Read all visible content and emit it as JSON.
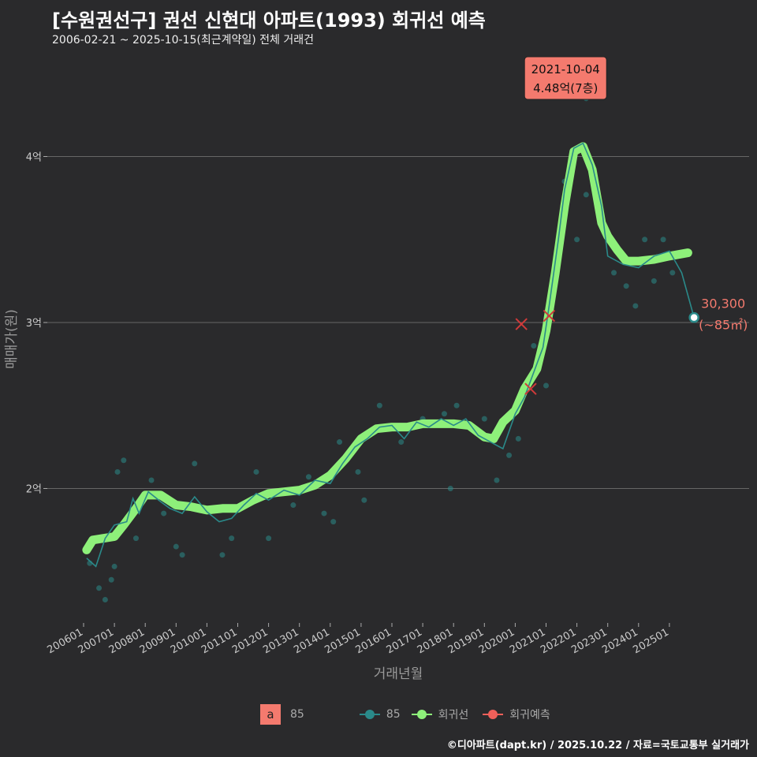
{
  "title": "[수원권선구] 권선 신현대 아파트(1993) 회귀선 예측",
  "subtitle": "2006-02-21 ~ 2025-10-15(최근계약일) 전체 거래건",
  "footer": "©디아파트(dapt.kr) / 2025.10.22 / 자료=국토교통부 실거래가",
  "legend": {
    "a_label": "a",
    "area_label": "85",
    "items": [
      {
        "label": "85",
        "color": "#2a8a8a"
      },
      {
        "label": "회귀선",
        "color": "#8ef07a"
      },
      {
        "label": "회귀예측",
        "color": "#f0605a"
      }
    ]
  },
  "chart_data": {
    "type": "line",
    "xlabel": "거래년월",
    "ylabel": "매매가(원)",
    "xlim": [
      2005.7,
      2026.5
    ],
    "ylim": [
      1.2,
      4.7
    ],
    "x_ticks": [
      "200601",
      "200701",
      "200801",
      "200901",
      "201001",
      "201101",
      "201201",
      "201301",
      "201401",
      "201501",
      "201601",
      "201701",
      "201801",
      "201901",
      "202001",
      "202101",
      "202201",
      "202301",
      "202401",
      "202501"
    ],
    "y_ticks": [
      {
        "value": 2,
        "label": "2억"
      },
      {
        "value": 3,
        "label": "3억"
      },
      {
        "value": 4,
        "label": "4억"
      }
    ],
    "colors": {
      "regression": "#8ef07a",
      "area85": "#2a8a8a",
      "predict": "#d03a3a",
      "grid": "#666666",
      "label": "#f47a6e"
    },
    "regression": [
      [
        2006.1,
        1.63
      ],
      [
        2006.3,
        1.69
      ],
      [
        2007.0,
        1.71
      ],
      [
        2007.3,
        1.78
      ],
      [
        2007.7,
        1.88
      ],
      [
        2008.0,
        1.96
      ],
      [
        2008.5,
        1.96
      ],
      [
        2009.0,
        1.9
      ],
      [
        2009.5,
        1.89
      ],
      [
        2010.0,
        1.87
      ],
      [
        2010.5,
        1.88
      ],
      [
        2011.0,
        1.88
      ],
      [
        2011.5,
        1.93
      ],
      [
        2012.0,
        1.97
      ],
      [
        2012.5,
        1.98
      ],
      [
        2013.0,
        1.99
      ],
      [
        2013.5,
        2.02
      ],
      [
        2014.0,
        2.08
      ],
      [
        2014.5,
        2.18
      ],
      [
        2015.0,
        2.3
      ],
      [
        2015.5,
        2.36
      ],
      [
        2016.0,
        2.37
      ],
      [
        2016.5,
        2.37
      ],
      [
        2017.0,
        2.39
      ],
      [
        2017.5,
        2.39
      ],
      [
        2018.0,
        2.39
      ],
      [
        2018.5,
        2.38
      ],
      [
        2019.0,
        2.31
      ],
      [
        2019.3,
        2.3
      ],
      [
        2019.6,
        2.4
      ],
      [
        2020.0,
        2.47
      ],
      [
        2020.3,
        2.6
      ],
      [
        2020.7,
        2.72
      ],
      [
        2021.0,
        2.95
      ],
      [
        2021.3,
        3.3
      ],
      [
        2021.6,
        3.7
      ],
      [
        2021.9,
        4.03
      ],
      [
        2022.2,
        4.06
      ],
      [
        2022.5,
        3.92
      ],
      [
        2022.8,
        3.6
      ],
      [
        2023.0,
        3.52
      ],
      [
        2023.3,
        3.44
      ],
      [
        2023.6,
        3.37
      ],
      [
        2024.0,
        3.37
      ],
      [
        2024.5,
        3.38
      ],
      [
        2025.0,
        3.4
      ],
      [
        2025.6,
        3.42
      ]
    ],
    "series85": [
      [
        2006.1,
        1.58
      ],
      [
        2006.4,
        1.53
      ],
      [
        2006.7,
        1.7
      ],
      [
        2007.0,
        1.78
      ],
      [
        2007.4,
        1.8
      ],
      [
        2007.6,
        1.94
      ],
      [
        2007.8,
        1.85
      ],
      [
        2008.1,
        1.98
      ],
      [
        2008.5,
        1.92
      ],
      [
        2008.8,
        1.88
      ],
      [
        2009.2,
        1.85
      ],
      [
        2009.6,
        1.95
      ],
      [
        2010.0,
        1.86
      ],
      [
        2010.4,
        1.8
      ],
      [
        2010.8,
        1.82
      ],
      [
        2011.2,
        1.9
      ],
      [
        2011.6,
        1.97
      ],
      [
        2012.0,
        1.93
      ],
      [
        2012.5,
        1.99
      ],
      [
        2013.0,
        1.96
      ],
      [
        2013.5,
        2.05
      ],
      [
        2014.0,
        2.03
      ],
      [
        2014.4,
        2.15
      ],
      [
        2014.8,
        2.25
      ],
      [
        2015.2,
        2.3
      ],
      [
        2015.6,
        2.37
      ],
      [
        2016.0,
        2.38
      ],
      [
        2016.4,
        2.3
      ],
      [
        2016.8,
        2.4
      ],
      [
        2017.2,
        2.37
      ],
      [
        2017.6,
        2.42
      ],
      [
        2018.0,
        2.38
      ],
      [
        2018.4,
        2.42
      ],
      [
        2018.8,
        2.32
      ],
      [
        2019.2,
        2.28
      ],
      [
        2019.6,
        2.24
      ],
      [
        2020.0,
        2.45
      ],
      [
        2020.3,
        2.55
      ],
      [
        2020.6,
        2.7
      ],
      [
        2020.9,
        2.85
      ],
      [
        2021.1,
        3.1
      ],
      [
        2021.4,
        3.5
      ],
      [
        2021.6,
        3.8
      ],
      [
        2021.9,
        4.05
      ],
      [
        2022.2,
        4.08
      ],
      [
        2022.5,
        3.95
      ],
      [
        2022.8,
        3.7
      ],
      [
        2023.0,
        3.4
      ],
      [
        2023.5,
        3.35
      ],
      [
        2024.0,
        3.33
      ],
      [
        2024.5,
        3.4
      ],
      [
        2025.0,
        3.43
      ],
      [
        2025.4,
        3.3
      ],
      [
        2025.8,
        3.03
      ]
    ],
    "points85": [
      [
        2006.2,
        1.55
      ],
      [
        2006.5,
        1.4
      ],
      [
        2006.7,
        1.33
      ],
      [
        2006.9,
        1.45
      ],
      [
        2007.1,
        2.1
      ],
      [
        2007.3,
        2.17
      ],
      [
        2007.0,
        1.53
      ],
      [
        2007.7,
        1.7
      ],
      [
        2008.2,
        2.05
      ],
      [
        2008.6,
        1.85
      ],
      [
        2009.0,
        1.65
      ],
      [
        2009.2,
        1.6
      ],
      [
        2009.6,
        2.15
      ],
      [
        2010.5,
        1.6
      ],
      [
        2010.8,
        1.7
      ],
      [
        2011.6,
        2.1
      ],
      [
        2012.0,
        1.7
      ],
      [
        2012.8,
        1.9
      ],
      [
        2013.3,
        2.07
      ],
      [
        2013.8,
        1.85
      ],
      [
        2014.1,
        1.8
      ],
      [
        2014.3,
        2.28
      ],
      [
        2014.9,
        2.1
      ],
      [
        2015.1,
        1.93
      ],
      [
        2015.6,
        2.5
      ],
      [
        2016.3,
        2.28
      ],
      [
        2017.0,
        2.42
      ],
      [
        2017.7,
        2.45
      ],
      [
        2018.1,
        2.5
      ],
      [
        2017.9,
        2.0
      ],
      [
        2019.0,
        2.42
      ],
      [
        2019.4,
        2.05
      ],
      [
        2019.8,
        2.2
      ],
      [
        2020.1,
        2.3
      ],
      [
        2020.6,
        2.86
      ],
      [
        2021.0,
        2.62
      ],
      [
        2021.6,
        3.85
      ],
      [
        2021.8,
        4.48
      ],
      [
        2022.0,
        3.5
      ],
      [
        2022.3,
        4.35
      ],
      [
        2022.3,
        3.77
      ],
      [
        2023.2,
        3.3
      ],
      [
        2023.6,
        3.22
      ],
      [
        2023.9,
        3.1
      ],
      [
        2024.2,
        3.5
      ],
      [
        2024.5,
        3.25
      ],
      [
        2024.8,
        3.5
      ],
      [
        2025.1,
        3.3
      ]
    ],
    "predict": [
      [
        2020.2,
        2.99
      ],
      [
        2020.5,
        2.6
      ],
      [
        2021.1,
        3.04
      ]
    ],
    "annotation": {
      "x": 2021.76,
      "y": 4.48,
      "line1": "2021-10-04",
      "line2": "4.48억(7층)"
    },
    "end_label": {
      "x": 2025.8,
      "y": 3.03,
      "line1": "30,300",
      "line2": "(~85㎡)"
    }
  }
}
